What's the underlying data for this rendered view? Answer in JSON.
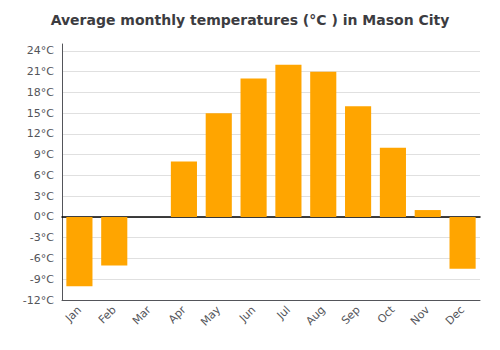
{
  "chart_data": {
    "type": "bar",
    "title": "Average monthly temperatures (°C ) in Mason City",
    "categories": [
      "Jan",
      "Feb",
      "Mar",
      "Apr",
      "May",
      "Jun",
      "Jul",
      "Aug",
      "Sep",
      "Oct",
      "Nov",
      "Dec"
    ],
    "values": [
      -10,
      -7,
      0,
      8,
      15,
      20,
      22,
      21,
      16,
      10,
      1,
      -7.5
    ],
    "color": "#FFA500",
    "ylim": [
      -12,
      25
    ],
    "yticks": [
      {
        "value": -12,
        "label": "-12°C"
      },
      {
        "value": -9,
        "label": "-9°C"
      },
      {
        "value": -6,
        "label": "-6°C"
      },
      {
        "value": -3,
        "label": "-3°C"
      },
      {
        "value": 0,
        "label": "0°C"
      },
      {
        "value": 3,
        "label": "3°C"
      },
      {
        "value": 6,
        "label": "6°C"
      },
      {
        "value": 9,
        "label": "9°C"
      },
      {
        "value": 12,
        "label": "12°C"
      },
      {
        "value": 15,
        "label": "15°C"
      },
      {
        "value": 18,
        "label": "18°C"
      },
      {
        "value": 21,
        "label": "21°C"
      },
      {
        "value": 24,
        "label": "24°C"
      }
    ],
    "grid": true
  }
}
